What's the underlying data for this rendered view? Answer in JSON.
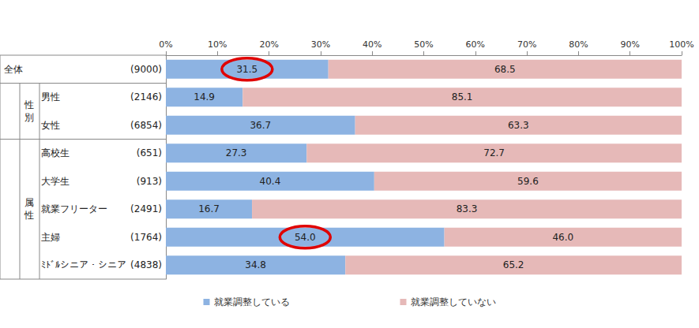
{
  "chart_data": {
    "type": "bar",
    "orientation": "horizontal",
    "stacked": true,
    "data_labels": true,
    "grid": false,
    "legend": "bottom",
    "tick_labels": "x",
    "categories": [
      "全体",
      "男性",
      "女性",
      "高校生",
      "大学生",
      "就業フリーター",
      "主婦",
      "ﾐﾄﾞﾙシニア・シニア"
    ],
    "sample_labels": [
      "(9000)",
      "(2146)",
      "(6854)",
      "(651)",
      "(913)",
      "(2491)",
      "(1764)",
      "(4838)"
    ],
    "groups": [
      {
        "label": "性別",
        "members": [
          "男性",
          "女性"
        ]
      },
      {
        "label": "属性",
        "members": [
          "高校生",
          "大学生",
          "就業フリーター",
          "主婦",
          "ﾐﾄﾞﾙシニア・シニア"
        ]
      }
    ],
    "series": [
      {
        "name": "就業調整している",
        "color": "#8db3e2",
        "values": [
          31.5,
          14.9,
          36.7,
          27.3,
          40.4,
          16.7,
          54.0,
          34.8
        ],
        "value_labels": [
          "31.5",
          "14.9",
          "36.7",
          "27.3",
          "40.4",
          "16.7",
          "54.0",
          "34.8"
        ]
      },
      {
        "name": "就業調整していない",
        "color": "#e6b9b8",
        "values": [
          68.5,
          85.1,
          63.3,
          72.7,
          59.6,
          83.3,
          46.0,
          65.2
        ],
        "value_labels": [
          "68.5",
          "85.1",
          "63.3",
          "72.7",
          "59.6",
          "83.3",
          "46.0",
          "65.2"
        ]
      }
    ],
    "highlights": [
      {
        "series": "就業調整している",
        "category": "全体"
      },
      {
        "series": "就業調整している",
        "category": "主婦"
      }
    ],
    "xlim": [
      0,
      100
    ],
    "xticks": [
      {
        "value": 0,
        "label": "0%"
      },
      {
        "value": 10,
        "label": "10%"
      },
      {
        "value": 20,
        "label": "20%"
      },
      {
        "value": 30,
        "label": "30%"
      },
      {
        "value": 40,
        "label": "40%"
      },
      {
        "value": 50,
        "label": "50%"
      },
      {
        "value": 60,
        "label": "60%"
      },
      {
        "value": 70,
        "label": "70%"
      },
      {
        "value": 80,
        "label": "80%"
      },
      {
        "value": 90,
        "label": "90%"
      },
      {
        "value": 100,
        "label": "100%"
      }
    ]
  }
}
